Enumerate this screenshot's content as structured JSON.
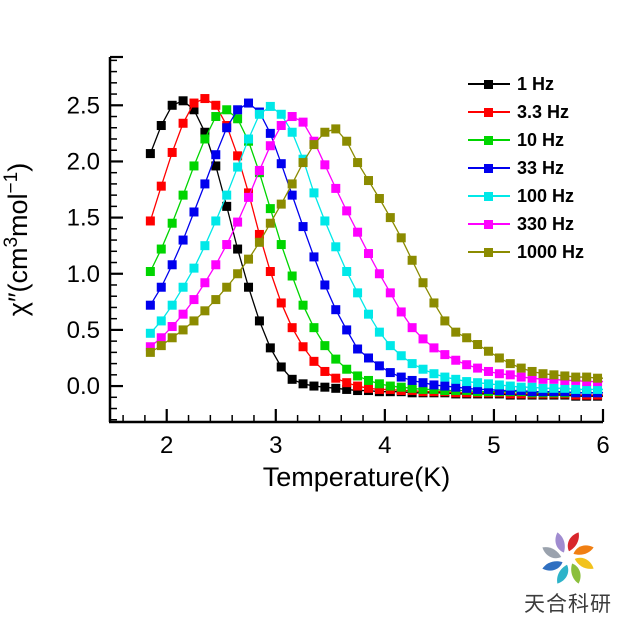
{
  "figure": {
    "title": "",
    "watermark": {
      "text": "天合科研",
      "logo": "pinwheel-swirl",
      "petal_colors": [
        "#d8262c",
        "#f07f13",
        "#f2c21c",
        "#8bbf3c",
        "#2db3c9",
        "#2f6fc1",
        "#9aa2ad",
        "#a08cd0"
      ]
    },
    "chart_data": {
      "type": "line",
      "title": "",
      "xlabel": "Temperature(K)",
      "ylabel": "χ″(cm³mol⁻¹)",
      "ylabel_rich": [
        {
          "text": "χ″(cm"
        },
        {
          "text": "3",
          "sup": true
        },
        {
          "text": "mol"
        },
        {
          "text": "−1",
          "sup": true
        },
        {
          "text": ")"
        }
      ],
      "xlim": [
        1.48,
        6.0
      ],
      "ylim": [
        -0.32,
        2.93
      ],
      "x_major_ticks": [
        2,
        3,
        4,
        5,
        6
      ],
      "x_minor_step": 0.2,
      "y_major_ticks": [
        0.0,
        0.5,
        1.0,
        1.5,
        2.0,
        2.5
      ],
      "y_minor_step": 0.1,
      "grid": false,
      "legend_position": "top-right-inside",
      "marker": "filled-square",
      "x": [
        1.85,
        1.95,
        2.05,
        2.15,
        2.25,
        2.35,
        2.45,
        2.55,
        2.65,
        2.75,
        2.85,
        2.95,
        3.05,
        3.15,
        3.25,
        3.35,
        3.45,
        3.55,
        3.65,
        3.75,
        3.85,
        3.95,
        4.05,
        4.15,
        4.25,
        4.35,
        4.45,
        4.55,
        4.65,
        4.75,
        4.85,
        4.95,
        5.05,
        5.15,
        5.25,
        5.35,
        5.45,
        5.55,
        5.65,
        5.75,
        5.85,
        5.95,
        6.05
      ],
      "series": [
        {
          "name": "1 Hz",
          "color": "#000000",
          "values": [
            2.07,
            2.32,
            2.5,
            2.54,
            2.46,
            2.26,
            1.96,
            1.6,
            1.22,
            0.88,
            0.58,
            0.34,
            0.17,
            0.06,
            0.02,
            0.0,
            -0.01,
            -0.02,
            -0.03,
            -0.04,
            -0.04,
            -0.05,
            -0.05,
            -0.05,
            -0.06,
            -0.06,
            -0.06,
            -0.06,
            -0.07,
            -0.07,
            -0.07,
            -0.07,
            -0.07,
            -0.08,
            -0.08,
            -0.08,
            -0.08,
            -0.08,
            -0.08,
            -0.09,
            -0.09,
            -0.09,
            -0.09
          ]
        },
        {
          "name": "3.3 Hz",
          "color": "#ff0000",
          "values": [
            1.47,
            1.78,
            2.08,
            2.34,
            2.52,
            2.56,
            2.5,
            2.32,
            2.05,
            1.72,
            1.35,
            1.02,
            0.74,
            0.52,
            0.35,
            0.22,
            0.13,
            0.07,
            0.03,
            0.0,
            -0.02,
            -0.03,
            -0.03,
            -0.04,
            -0.04,
            -0.05,
            -0.05,
            -0.05,
            -0.06,
            -0.06,
            -0.06,
            -0.06,
            -0.06,
            -0.07,
            -0.07,
            -0.07,
            -0.07,
            -0.07,
            -0.07,
            -0.08,
            -0.08,
            -0.08,
            -0.08
          ]
        },
        {
          "name": "10 Hz",
          "color": "#00d500",
          "values": [
            1.02,
            1.22,
            1.45,
            1.7,
            1.96,
            2.2,
            2.4,
            2.46,
            2.38,
            2.18,
            1.9,
            1.58,
            1.26,
            0.98,
            0.72,
            0.52,
            0.36,
            0.24,
            0.15,
            0.09,
            0.05,
            0.02,
            0.0,
            -0.01,
            -0.02,
            -0.03,
            -0.03,
            -0.04,
            -0.04,
            -0.04,
            -0.05,
            -0.05,
            -0.05,
            -0.05,
            -0.05,
            -0.06,
            -0.06,
            -0.06,
            -0.06,
            -0.06,
            -0.06,
            -0.06,
            -0.06
          ]
        },
        {
          "name": "33 Hz",
          "color": "#0000ee",
          "values": [
            0.72,
            0.88,
            1.08,
            1.3,
            1.55,
            1.8,
            2.06,
            2.3,
            2.46,
            2.52,
            2.44,
            2.25,
            1.98,
            1.7,
            1.42,
            1.15,
            0.9,
            0.68,
            0.5,
            0.33,
            0.25,
            0.18,
            0.12,
            0.08,
            0.05,
            0.03,
            0.01,
            0.0,
            -0.01,
            -0.02,
            -0.03,
            -0.03,
            -0.04,
            -0.04,
            -0.04,
            -0.05,
            -0.05,
            -0.05,
            -0.05,
            -0.06,
            -0.06,
            -0.06,
            -0.06
          ]
        },
        {
          "name": "100 Hz",
          "color": "#00e8e8",
          "values": [
            0.47,
            0.58,
            0.72,
            0.88,
            1.05,
            1.25,
            1.47,
            1.7,
            1.95,
            2.2,
            2.42,
            2.49,
            2.42,
            2.26,
            2.02,
            1.72,
            1.47,
            1.24,
            1.02,
            0.83,
            0.64,
            0.48,
            0.36,
            0.27,
            0.2,
            0.15,
            0.11,
            0.08,
            0.06,
            0.04,
            0.03,
            0.02,
            0.01,
            0.0,
            -0.01,
            -0.01,
            -0.02,
            -0.02,
            -0.02,
            -0.03,
            -0.03,
            -0.03,
            -0.03
          ]
        },
        {
          "name": "330 Hz",
          "color": "#ff00ff",
          "values": [
            0.35,
            0.43,
            0.53,
            0.64,
            0.77,
            0.92,
            1.08,
            1.26,
            1.46,
            1.68,
            1.92,
            2.14,
            2.32,
            2.4,
            2.35,
            2.18,
            1.97,
            1.76,
            1.56,
            1.37,
            1.18,
            1.0,
            0.83,
            0.66,
            0.52,
            0.42,
            0.34,
            0.28,
            0.23,
            0.19,
            0.16,
            0.13,
            0.11,
            0.1,
            0.08,
            0.07,
            0.06,
            0.06,
            0.05,
            0.05,
            0.04,
            0.04,
            0.04
          ]
        },
        {
          "name": "1000 Hz",
          "color": "#8b8b00",
          "values": [
            0.3,
            0.36,
            0.43,
            0.5,
            0.58,
            0.67,
            0.77,
            0.88,
            1.0,
            1.13,
            1.28,
            1.45,
            1.62,
            1.8,
            1.99,
            2.15,
            2.26,
            2.29,
            2.18,
            1.99,
            1.83,
            1.67,
            1.5,
            1.32,
            1.12,
            0.92,
            0.74,
            0.58,
            0.48,
            0.43,
            0.37,
            0.31,
            0.25,
            0.2,
            0.16,
            0.13,
            0.11,
            0.1,
            0.09,
            0.08,
            0.08,
            0.07,
            0.07
          ]
        }
      ]
    }
  }
}
